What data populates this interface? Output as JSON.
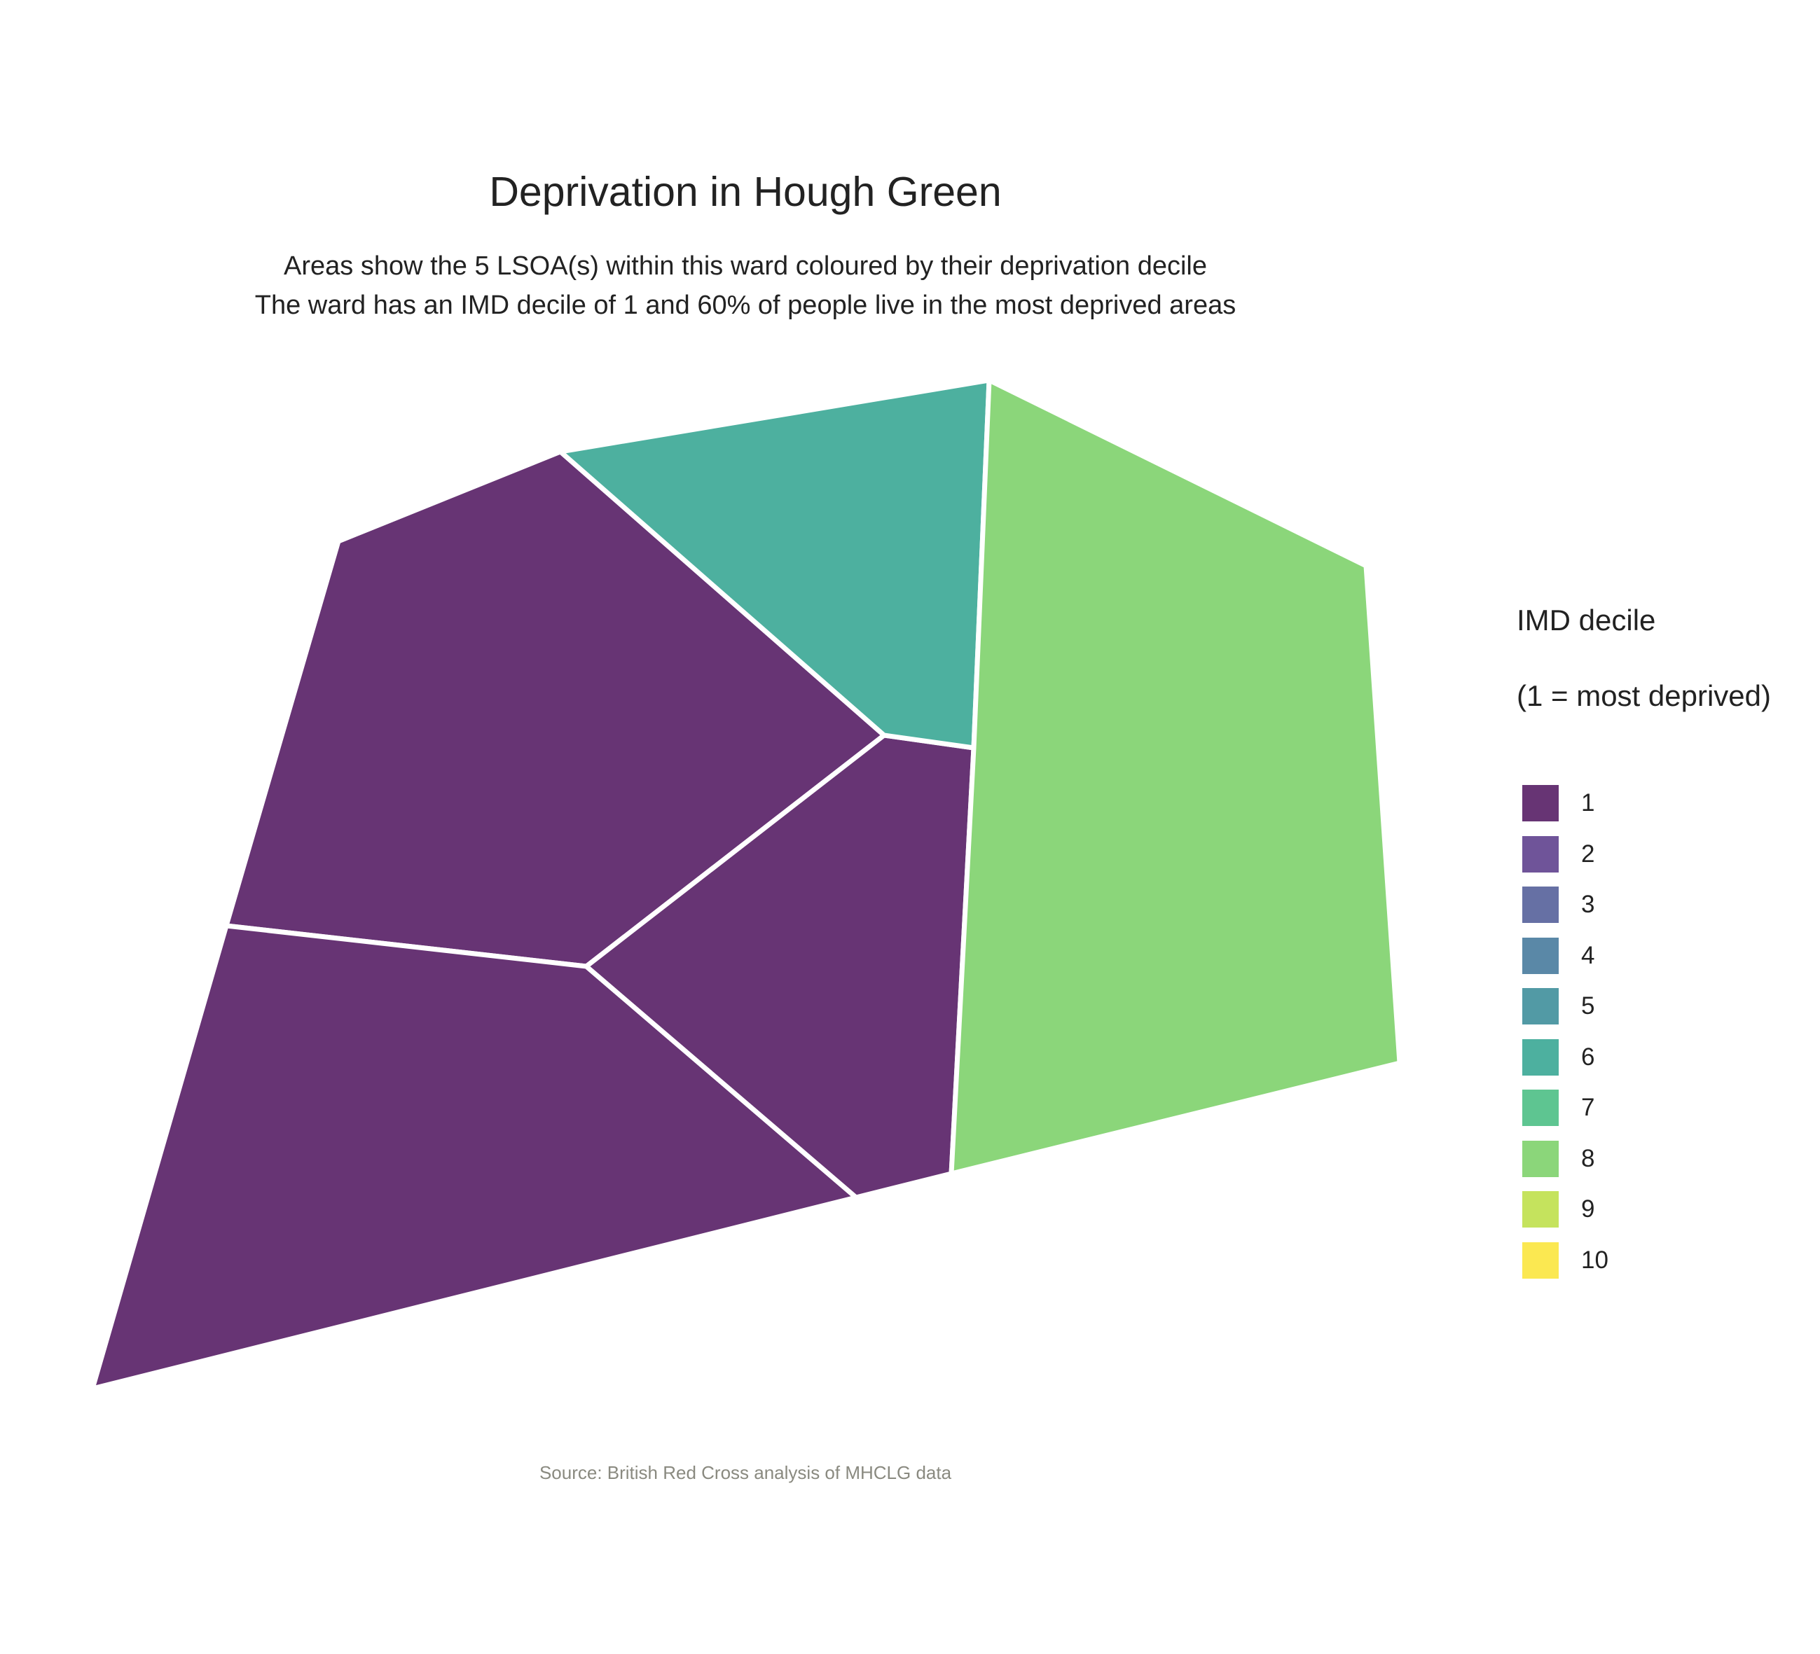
{
  "title": "Deprivation in Hough Green",
  "subtitle_line1": "Areas show the 5 LSOA(s) within this ward coloured by their deprivation decile",
  "subtitle_line2": "The ward has an IMD decile of 1 and 60% of people live in the most deprived areas",
  "caption": "Source: British Red Cross analysis of MHCLG data",
  "legend": {
    "title_line1": "IMD decile",
    "title_line2": "(1 = most deprived)",
    "items": [
      {
        "label": "1",
        "color": "#673474"
      },
      {
        "label": "2",
        "color": "#6f5499"
      },
      {
        "label": "3",
        "color": "#6670a4"
      },
      {
        "label": "4",
        "color": "#5a88a7"
      },
      {
        "label": "5",
        "color": "#529aa5"
      },
      {
        "label": "6",
        "color": "#4db09f"
      },
      {
        "label": "7",
        "color": "#5ec591"
      },
      {
        "label": "8",
        "color": "#8bd67a"
      },
      {
        "label": "9",
        "color": "#c5e35d"
      },
      {
        "label": "10",
        "color": "#fbe851"
      }
    ]
  },
  "chart_data": {
    "type": "choropleth",
    "areas": [
      {
        "id": "lsoa-north-west",
        "decile": 1,
        "color": "#673474"
      },
      {
        "id": "lsoa-south-west",
        "decile": 1,
        "color": "#673474"
      },
      {
        "id": "lsoa-centre",
        "decile": 1,
        "color": "#673474"
      },
      {
        "id": "lsoa-north",
        "decile": 6,
        "color": "#4db09f"
      },
      {
        "id": "lsoa-east",
        "decile": 8,
        "color": "#8bd67a"
      }
    ]
  }
}
